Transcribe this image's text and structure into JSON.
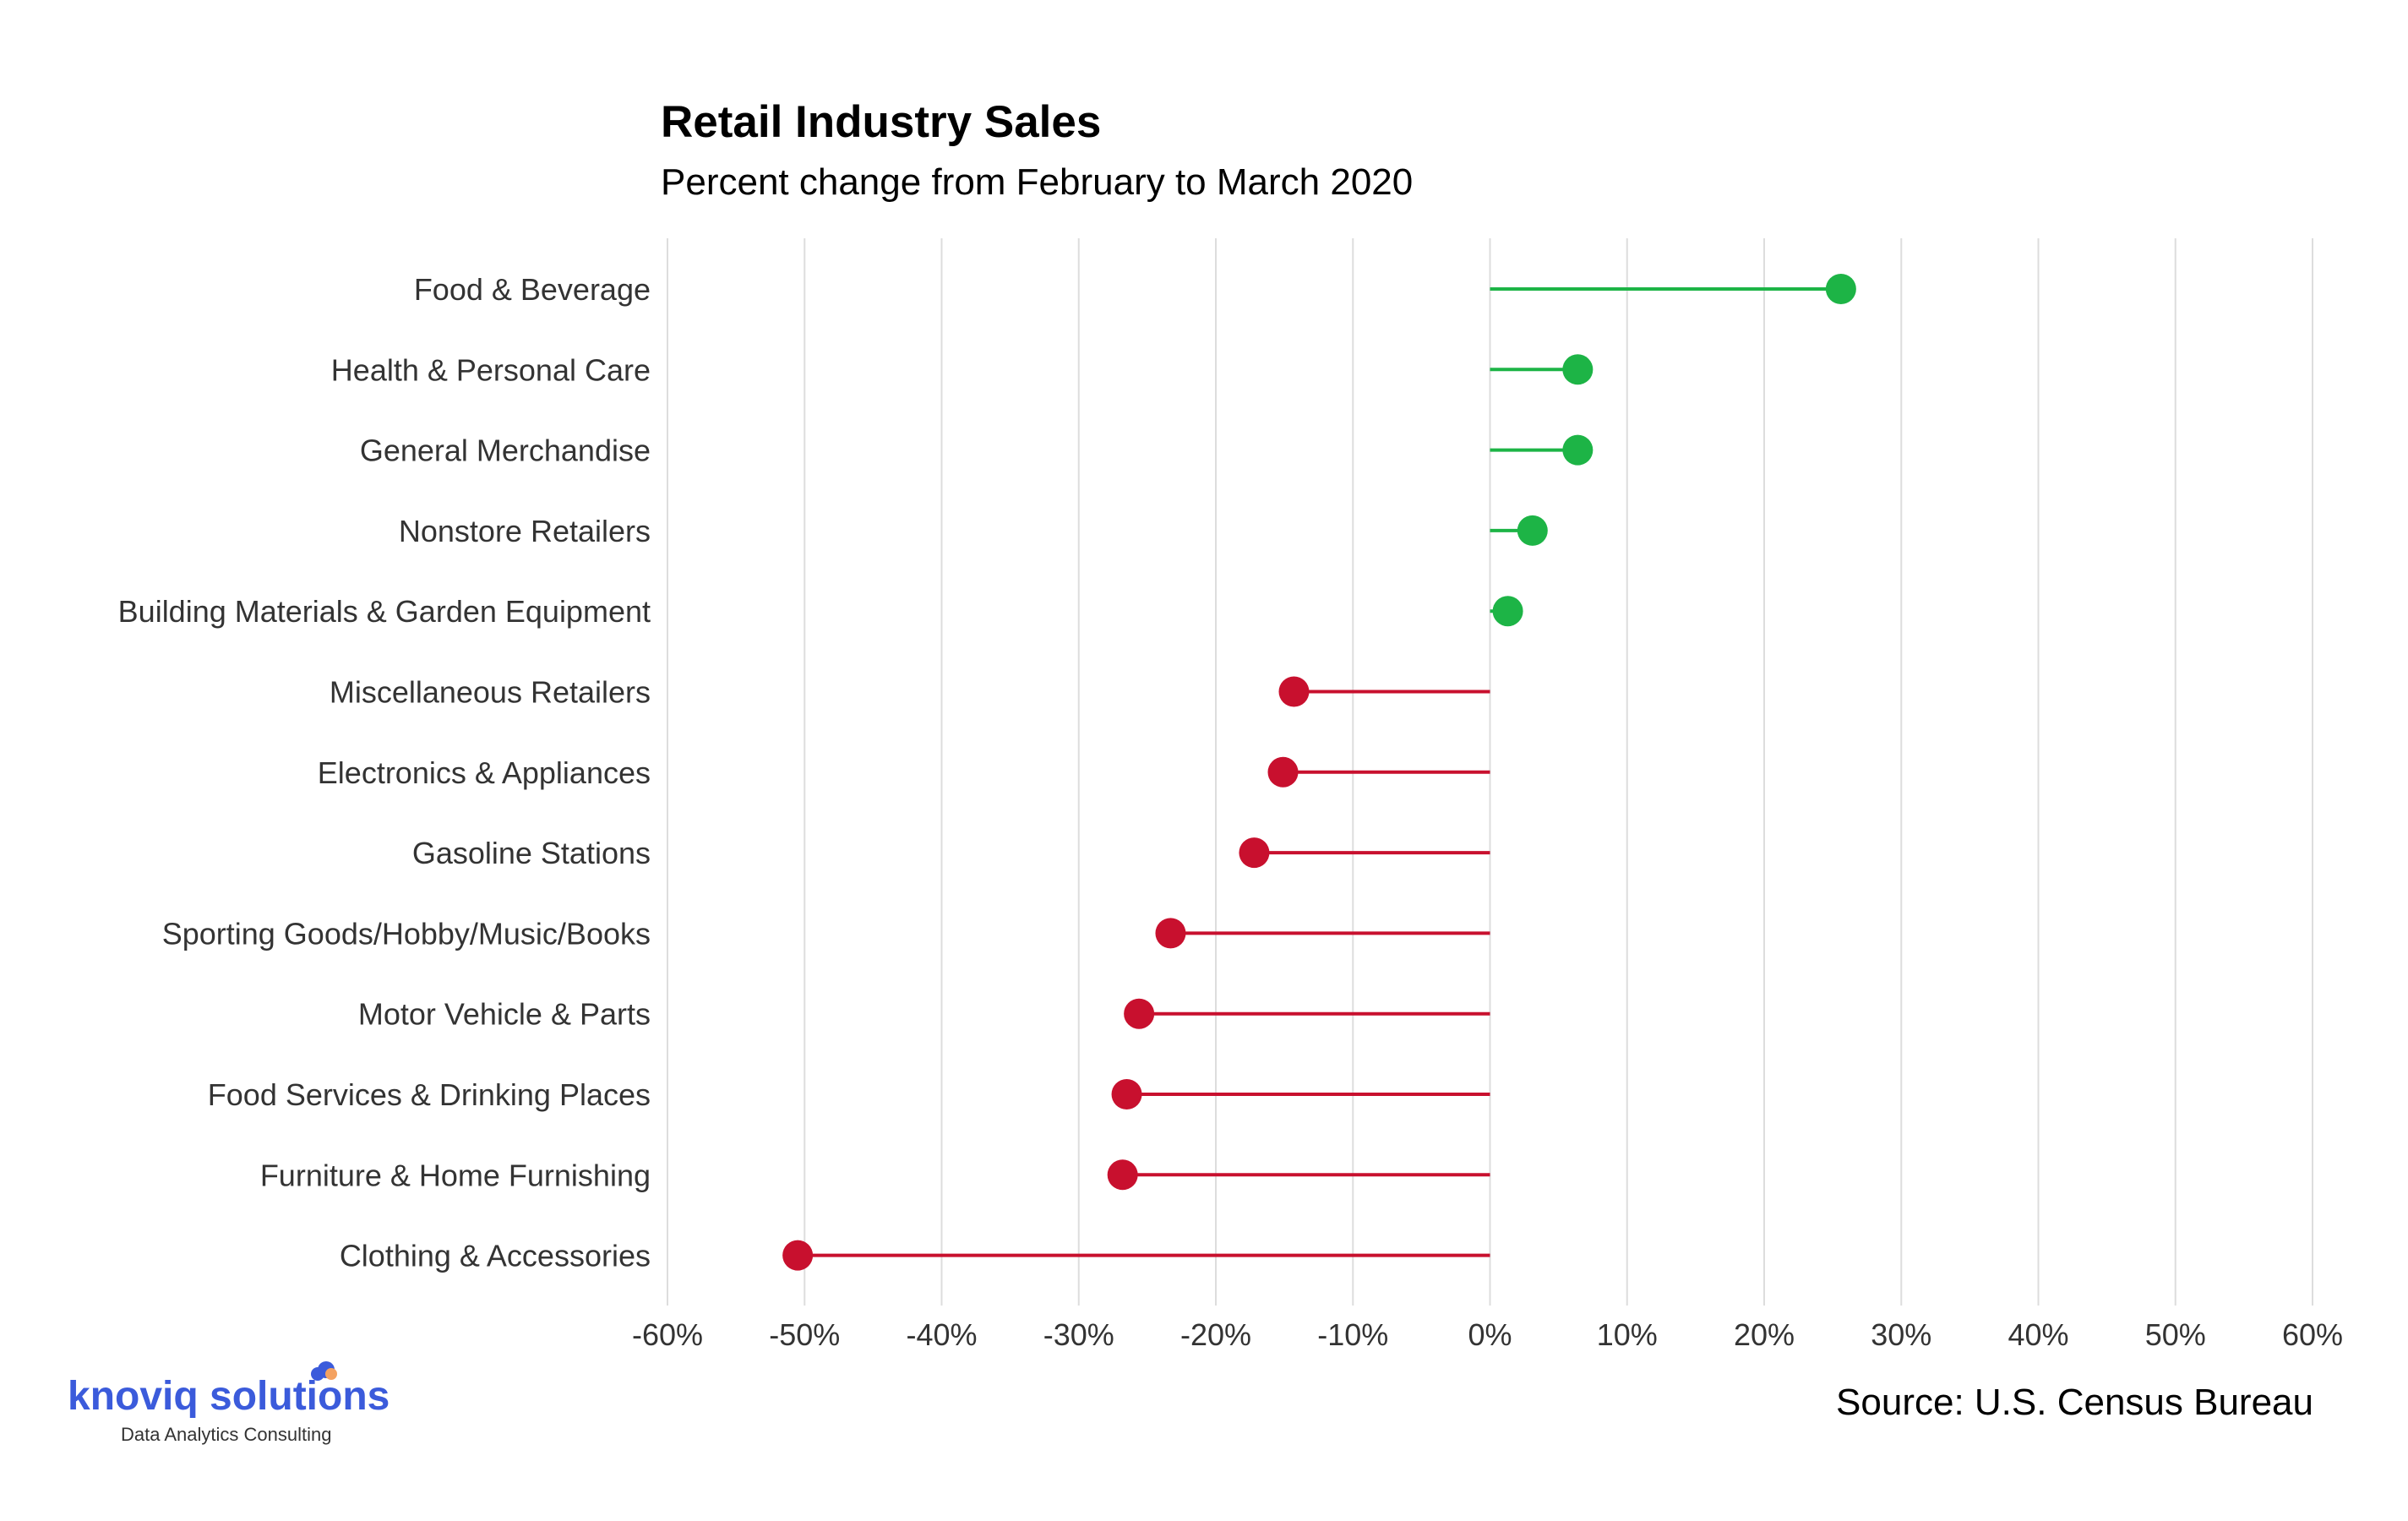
{
  "chart_data": {
    "type": "lollipop",
    "title": "Retail Industry Sales",
    "subtitle": "Percent change from February to March 2020",
    "xlim": [
      -60,
      60
    ],
    "x_ticks": [
      -60,
      -50,
      -40,
      -30,
      -20,
      -10,
      0,
      10,
      20,
      30,
      40,
      50,
      60
    ],
    "x_tick_labels": [
      "-60%",
      "-50%",
      "-40%",
      "-30%",
      "-20%",
      "-10%",
      "0%",
      "10%",
      "20%",
      "30%",
      "40%",
      "50%",
      "60%"
    ],
    "grid": "vertical",
    "categories": [
      "Food & Beverage",
      "Health & Personal Care",
      "General Merchandise",
      "Nonstore Retailers",
      "Building Materials & Garden Equipment",
      "Miscellaneous Retailers",
      "Electronics & Appliances",
      "Gasoline Stations",
      "Sporting Goods/Hobby/Music/Books",
      "Motor Vehicle & Parts",
      "Food Services & Drinking Places",
      "Furniture & Home Furnishing",
      "Clothing & Accessories"
    ],
    "values": [
      25.6,
      6.4,
      6.4,
      3.1,
      1.3,
      -14.3,
      -15.1,
      -17.2,
      -23.3,
      -25.6,
      -26.5,
      -26.8,
      -50.5
    ],
    "colors": {
      "positive": "#1db446",
      "negative": "#c8102e"
    }
  },
  "source": "Source: U.S. Census Bureau",
  "logo": {
    "name": "knoviq solutions",
    "tagline": "Data Analytics Consulting"
  },
  "colors": {
    "grid": "#dddddd",
    "logo": "#3b5bdb",
    "logo_accent": "#f4a261"
  }
}
